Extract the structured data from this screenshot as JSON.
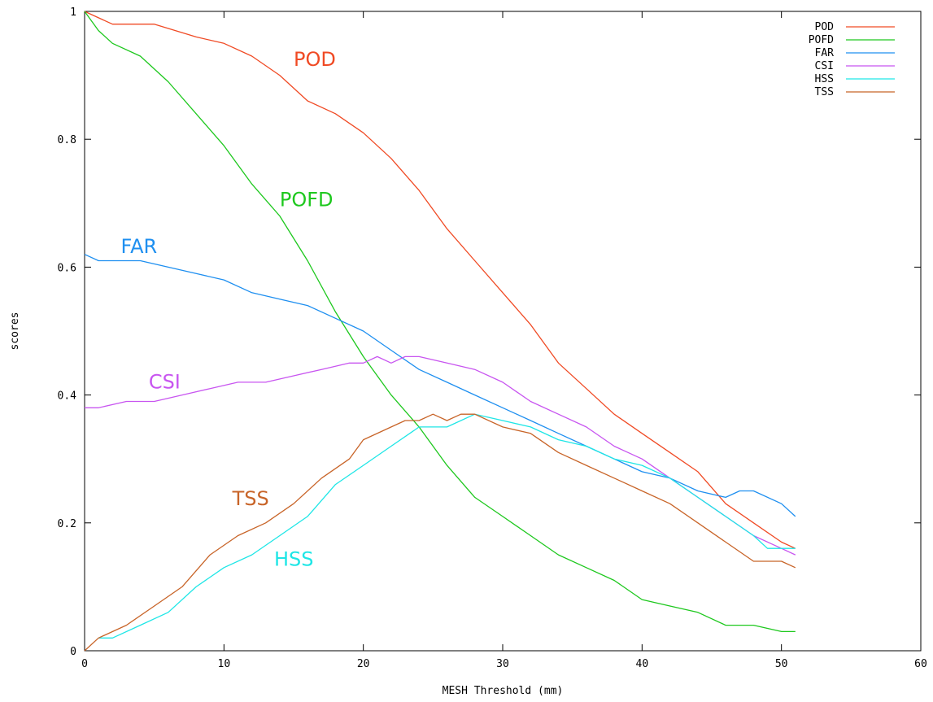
{
  "chart_data": {
    "type": "line",
    "xlabel": "MESH Threshold (mm)",
    "ylabel": "scores",
    "xlim": [
      0,
      60
    ],
    "ylim": [
      0,
      1
    ],
    "xticks": [
      "0",
      "10",
      "20",
      "30",
      "40",
      "50",
      "60"
    ],
    "yticks": [
      "0",
      "0.2",
      "0.4",
      "0.6",
      "0.8",
      "1"
    ],
    "legend_position": "top-right",
    "grid": false,
    "series": [
      {
        "name": "POD",
        "color": "#f04a24",
        "x": [
          0,
          2,
          5,
          8,
          10,
          12,
          14,
          16,
          18,
          20,
          22,
          24,
          26,
          28,
          30,
          32,
          34,
          36,
          38,
          40,
          42,
          44,
          46,
          48,
          50,
          51
        ],
        "y": [
          1.0,
          0.98,
          0.98,
          0.96,
          0.95,
          0.93,
          0.9,
          0.86,
          0.84,
          0.81,
          0.77,
          0.72,
          0.66,
          0.61,
          0.56,
          0.51,
          0.45,
          0.41,
          0.37,
          0.34,
          0.31,
          0.28,
          0.23,
          0.2,
          0.17,
          0.16
        ]
      },
      {
        "name": "POFD",
        "color": "#1ec81e",
        "x": [
          0,
          1,
          2,
          4,
          6,
          8,
          10,
          12,
          14,
          16,
          18,
          20,
          22,
          24,
          26,
          28,
          30,
          32,
          34,
          36,
          38,
          40,
          42,
          44,
          46,
          48,
          50,
          51
        ],
        "y": [
          1.0,
          0.97,
          0.95,
          0.93,
          0.89,
          0.84,
          0.79,
          0.73,
          0.68,
          0.61,
          0.53,
          0.46,
          0.4,
          0.35,
          0.29,
          0.24,
          0.21,
          0.18,
          0.15,
          0.13,
          0.11,
          0.08,
          0.07,
          0.06,
          0.04,
          0.04,
          0.03,
          0.03
        ]
      },
      {
        "name": "FAR",
        "color": "#1e8ff0",
        "x": [
          0,
          1,
          4,
          6,
          8,
          10,
          12,
          14,
          16,
          18,
          20,
          22,
          24,
          26,
          28,
          30,
          32,
          34,
          36,
          38,
          40,
          42,
          44,
          46,
          47,
          48,
          50,
          51
        ],
        "y": [
          0.62,
          0.61,
          0.61,
          0.6,
          0.59,
          0.58,
          0.56,
          0.55,
          0.54,
          0.52,
          0.5,
          0.47,
          0.44,
          0.42,
          0.4,
          0.38,
          0.36,
          0.34,
          0.32,
          0.3,
          0.28,
          0.27,
          0.25,
          0.24,
          0.25,
          0.25,
          0.23,
          0.21
        ]
      },
      {
        "name": "CSI",
        "color": "#c855f0",
        "x": [
          0,
          1,
          3,
          5,
          7,
          9,
          11,
          13,
          15,
          17,
          19,
          20,
          21,
          22,
          23,
          24,
          26,
          28,
          30,
          32,
          34,
          36,
          38,
          40,
          42,
          44,
          46,
          48,
          50,
          51
        ],
        "y": [
          0.38,
          0.38,
          0.39,
          0.39,
          0.4,
          0.41,
          0.42,
          0.42,
          0.43,
          0.44,
          0.45,
          0.45,
          0.46,
          0.45,
          0.46,
          0.46,
          0.45,
          0.44,
          0.42,
          0.39,
          0.37,
          0.35,
          0.32,
          0.3,
          0.27,
          0.24,
          0.21,
          0.18,
          0.16,
          0.15
        ]
      },
      {
        "name": "HSS",
        "color": "#1ee6e6",
        "x": [
          1,
          2,
          4,
          6,
          8,
          10,
          12,
          14,
          16,
          18,
          20,
          22,
          24,
          26,
          28,
          30,
          32,
          34,
          36,
          38,
          40,
          42,
          44,
          46,
          48,
          49,
          50,
          51
        ],
        "y": [
          0.02,
          0.02,
          0.04,
          0.06,
          0.1,
          0.13,
          0.15,
          0.18,
          0.21,
          0.26,
          0.29,
          0.32,
          0.35,
          0.35,
          0.37,
          0.36,
          0.35,
          0.33,
          0.32,
          0.3,
          0.29,
          0.27,
          0.24,
          0.21,
          0.18,
          0.16,
          0.16,
          0.16
        ]
      },
      {
        "name": "TSS",
        "color": "#c86428",
        "x": [
          0,
          1,
          3,
          5,
          7,
          9,
          11,
          13,
          15,
          17,
          19,
          20,
          22,
          23,
          24,
          25,
          26,
          27,
          28,
          30,
          32,
          34,
          36,
          38,
          40,
          42,
          44,
          46,
          48,
          50,
          51
        ],
        "y": [
          0.0,
          0.02,
          0.04,
          0.07,
          0.1,
          0.15,
          0.18,
          0.2,
          0.23,
          0.27,
          0.3,
          0.33,
          0.35,
          0.36,
          0.36,
          0.37,
          0.36,
          0.37,
          0.37,
          0.35,
          0.34,
          0.31,
          0.29,
          0.27,
          0.25,
          0.23,
          0.2,
          0.17,
          0.14,
          0.14,
          0.13
        ]
      }
    ],
    "annotations": [
      {
        "text": "POD",
        "x": 15,
        "y": 0.915,
        "color": "#f04a24"
      },
      {
        "text": "POFD",
        "x": 14,
        "y": 0.695,
        "color": "#1ec81e"
      },
      {
        "text": "FAR",
        "x": 2.6,
        "y": 0.622,
        "color": "#1e8ff0"
      },
      {
        "text": "CSI",
        "x": 4.6,
        "y": 0.41,
        "color": "#c855f0"
      },
      {
        "text": "TSS",
        "x": 10.6,
        "y": 0.228,
        "color": "#c86428"
      },
      {
        "text": "HSS",
        "x": 13.6,
        "y": 0.133,
        "color": "#1ee6e6"
      }
    ]
  }
}
